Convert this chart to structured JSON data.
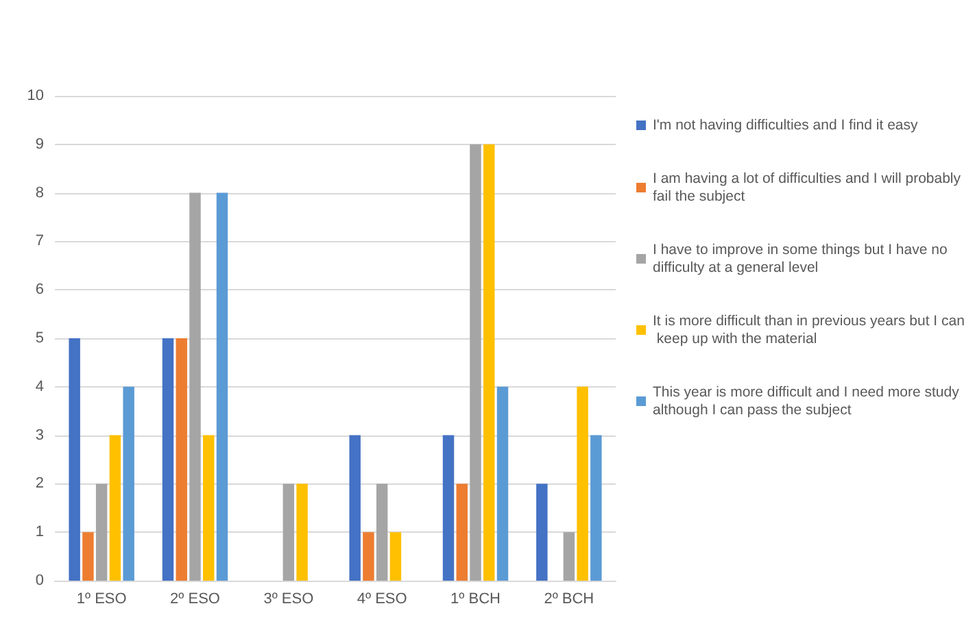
{
  "chart_data": {
    "type": "bar",
    "categories": [
      "1º ESO",
      "2º ESO",
      "3º ESO",
      "4º ESO",
      "1º BCH",
      "2º BCH"
    ],
    "series": [
      {
        "name": "I'm not having difficulties and I find it easy",
        "color": "#4472c4",
        "values": [
          5,
          5,
          0,
          3,
          3,
          2
        ]
      },
      {
        "name": "I am having a lot of difficulties and I will probably fail the subject",
        "color": "#ed7d31",
        "values": [
          1,
          5,
          0,
          1,
          2,
          0
        ]
      },
      {
        "name": "I have to improve in some things but I have no difficulty at a general level",
        "color": "#a5a5a5",
        "values": [
          2,
          8,
          2,
          2,
          9,
          1
        ]
      },
      {
        "name": "It is more difficult than in previous years but I can keep up with the material",
        "color": "#ffc000",
        "values": [
          3,
          3,
          2,
          1,
          9,
          4
        ]
      },
      {
        "name": "This year is more difficult and I need more study although I can pass the subject",
        "color": "#5b9bd5",
        "values": [
          4,
          8,
          0,
          0,
          4,
          3
        ]
      }
    ],
    "ylim": [
      0,
      10
    ],
    "yticks": [
      0,
      1,
      2,
      3,
      4,
      5,
      6,
      7,
      8,
      9,
      10
    ],
    "grid": "y",
    "legend": "right"
  }
}
